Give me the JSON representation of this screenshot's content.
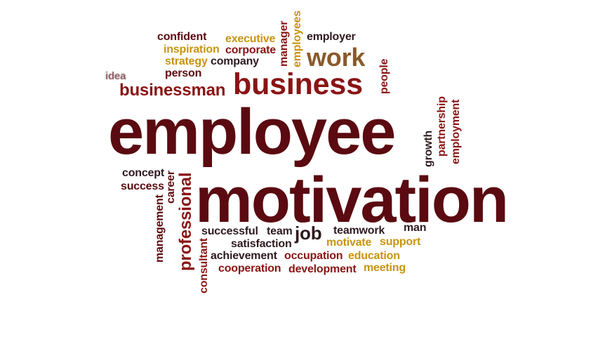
{
  "palette": {
    "dark_maroon": "#5a0a10",
    "red": "#8a1414",
    "ink": "#2e1a1f",
    "gold": "#c8930f",
    "brown": "#8a5a2a",
    "background": "#ffffff"
  },
  "words": {
    "employee": "employee",
    "motivation": "motivation",
    "business": "business",
    "businessman": "businessman",
    "work": "work",
    "confident": "confident",
    "executive": "executive",
    "manager": "manager",
    "employees": "employees",
    "employer": "employer",
    "inspiration": "inspiration",
    "corporate": "corporate",
    "strategy": "strategy",
    "company": "company",
    "idea": "idea",
    "person": "person",
    "people": "people",
    "partnership": "partnership",
    "employment": "employment",
    "growth": "growth",
    "concept": "concept",
    "career": "career",
    "success": "success",
    "professional": "professional",
    "management": "management",
    "consultant": "consultant",
    "successful": "successful",
    "team": "team",
    "job": "job",
    "teamwork": "teamwork",
    "man": "man",
    "satisfaction": "satisfaction",
    "motivate": "motivate",
    "support": "support",
    "achievement": "achievement",
    "occupation": "occupation",
    "education": "education",
    "cooperation": "cooperation",
    "development": "development",
    "meeting": "meeting"
  }
}
